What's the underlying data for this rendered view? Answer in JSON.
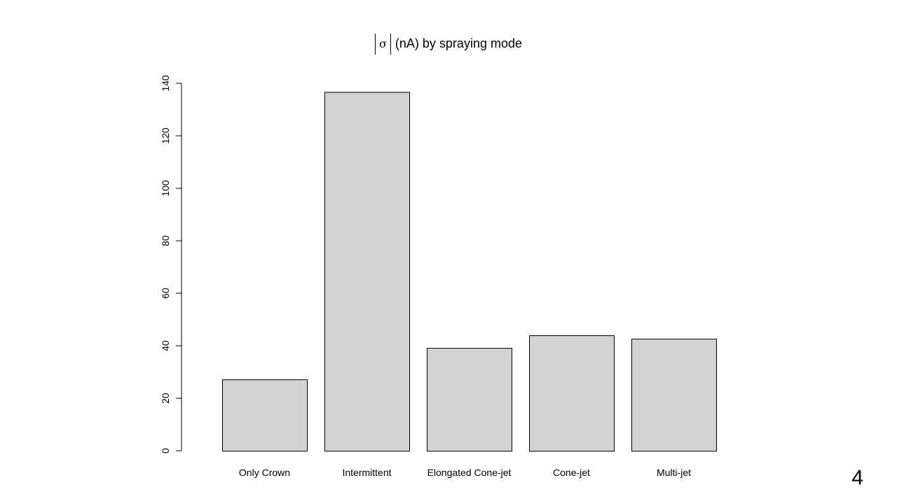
{
  "chart_data": {
    "type": "bar",
    "title_symbol": "σ",
    "title": "(nA) by spraying mode",
    "xlabel": "",
    "ylabel": "",
    "categories": [
      "Only Crown",
      "Intermittent",
      "Elongated Cone-jet",
      "Cone-jet",
      "Multi-jet"
    ],
    "values": [
      27.2,
      136.7,
      39.2,
      44.0,
      42.7
    ],
    "yticks": [
      0,
      20,
      40,
      60,
      80,
      100,
      120,
      140
    ],
    "ylim": [
      0,
      140
    ],
    "grid": false,
    "legend": "none",
    "bar_color": "#d3d3d3",
    "edge_color": "#000000"
  },
  "slide": {
    "page_number": "4"
  }
}
